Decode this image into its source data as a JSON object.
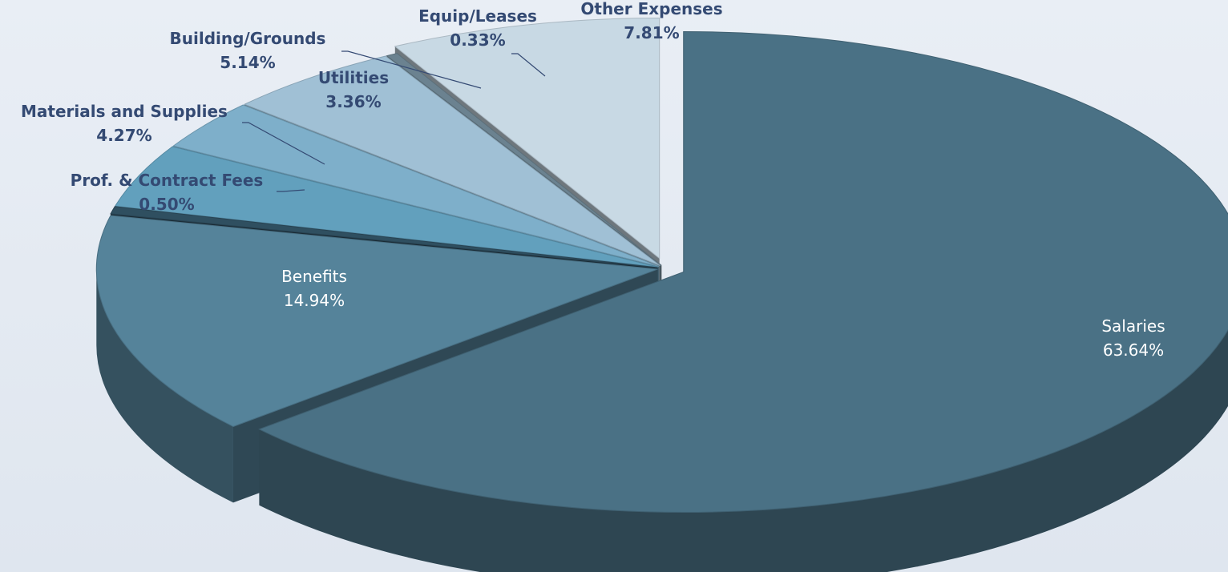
{
  "chart_data": {
    "type": "pie",
    "style": "3d-exploded",
    "title": "",
    "slices": [
      {
        "label": "Salaries",
        "value": 63.64,
        "value_label": "63.64%",
        "color": "#4a7185",
        "label_position": "inside"
      },
      {
        "label": "Benefits",
        "value": 14.94,
        "value_label": "14.94%",
        "color": "#55839a",
        "label_position": "inside"
      },
      {
        "label": "Prof. & Contract Fees",
        "value": 0.5,
        "value_label": "0.50%",
        "color": "#2f4f60",
        "label_position": "outside"
      },
      {
        "label": "Materials and Supplies",
        "value": 4.27,
        "value_label": "4.27%",
        "color": "#62a0bd",
        "label_position": "outside"
      },
      {
        "label": "Utilities",
        "value": 3.36,
        "value_label": "3.36%",
        "color": "#7eafca",
        "label_position": "outside"
      },
      {
        "label": "Building/Grounds",
        "value": 5.14,
        "value_label": "5.14%",
        "color": "#a0c0d5",
        "label_position": "outside"
      },
      {
        "label": "Equip/Leases",
        "value": 0.33,
        "value_label": "0.33%",
        "color": "#6b8290",
        "label_position": "outside"
      },
      {
        "label": "Other Expenses",
        "value": 7.81,
        "value_label": "7.81%",
        "color": "#c8d9e4",
        "label_position": "outside"
      }
    ]
  }
}
